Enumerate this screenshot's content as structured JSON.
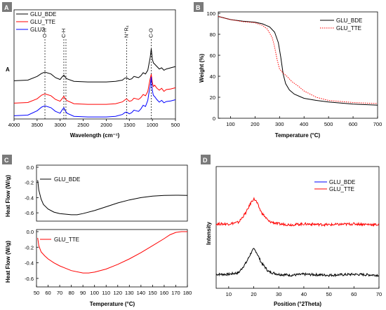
{
  "panels": {
    "a": "A",
    "b": "B",
    "c": "C",
    "d": "D"
  },
  "colors": {
    "black": "#000000",
    "red": "#ff0000",
    "blue": "#0000ff",
    "panel_label_bg": "#7a7a7a"
  },
  "chart_data": [
    {
      "id": "A",
      "type": "line",
      "xlabel": "Wavelength (cm⁻¹)",
      "ylabel": "A",
      "xlim": [
        4000,
        500
      ],
      "xticks": [
        4000,
        3500,
        3000,
        2500,
        2000,
        1500,
        1000,
        500
      ],
      "annotations": [
        {
          "label": "O-H",
          "x": 3330
        },
        {
          "label": "C-H",
          "x": 2920
        },
        {
          "label": "N⁺R₄",
          "x": 1560
        },
        {
          "label": "C-O",
          "x": 1025
        }
      ],
      "x": [
        4000,
        3700,
        3500,
        3400,
        3330,
        3200,
        3100,
        3000,
        2960,
        2920,
        2880,
        2850,
        2700,
        2400,
        2000,
        1800,
        1650,
        1600,
        1560,
        1500,
        1450,
        1400,
        1350,
        1300,
        1250,
        1200,
        1150,
        1100,
        1080,
        1050,
        1025,
        1000,
        980,
        950,
        900,
        850,
        800,
        750,
        700,
        600,
        500
      ],
      "series": [
        {
          "name": "GLU_BDE",
          "color": "#000000",
          "values": [
            0.03,
            0.04,
            0.1,
            0.15,
            0.17,
            0.14,
            0.08,
            0.05,
            0.09,
            0.12,
            0.08,
            0.06,
            0.02,
            0.01,
            0.01,
            0.02,
            0.04,
            0.07,
            0.08,
            0.05,
            0.06,
            0.1,
            0.09,
            0.08,
            0.11,
            0.16,
            0.14,
            0.2,
            0.28,
            0.4,
            0.55,
            0.38,
            0.32,
            0.3,
            0.26,
            0.22,
            0.24,
            0.2,
            0.22,
            0.24,
            0.26
          ]
        },
        {
          "name": "GLU_TTE",
          "color": "#ff0000",
          "values": [
            0.03,
            0.04,
            0.1,
            0.16,
            0.18,
            0.15,
            0.09,
            0.06,
            0.1,
            0.14,
            0.09,
            0.07,
            0.02,
            0.01,
            0.01,
            0.02,
            0.05,
            0.08,
            0.1,
            0.06,
            0.07,
            0.11,
            0.1,
            0.09,
            0.12,
            0.17,
            0.15,
            0.22,
            0.3,
            0.42,
            0.5,
            0.36,
            0.3,
            0.32,
            0.27,
            0.24,
            0.27,
            0.22,
            0.25,
            0.26,
            0.28
          ]
        },
        {
          "name": "GLU2",
          "color": "#0000ff",
          "values": [
            0.03,
            0.04,
            0.11,
            0.17,
            0.19,
            0.16,
            0.1,
            0.07,
            0.12,
            0.16,
            0.1,
            0.07,
            0.02,
            0.01,
            0.01,
            0.02,
            0.05,
            0.08,
            0.09,
            0.06,
            0.08,
            0.12,
            0.11,
            0.1,
            0.14,
            0.2,
            0.18,
            0.28,
            0.38,
            0.5,
            0.66,
            0.44,
            0.36,
            0.34,
            0.29,
            0.25,
            0.28,
            0.24,
            0.26,
            0.27,
            0.29
          ]
        }
      ],
      "legend": "top-left"
    },
    {
      "id": "B",
      "type": "line",
      "xlabel": "Temperature (°C)",
      "ylabel": "Weight (%)",
      "xlim": [
        50,
        700
      ],
      "ylim": [
        0,
        100
      ],
      "xticks": [
        100,
        200,
        300,
        400,
        500,
        600,
        700
      ],
      "yticks": [
        0,
        20,
        40,
        60,
        80,
        100
      ],
      "legend": "top-right",
      "series": [
        {
          "name": "GLU_BDE",
          "color": "#000000",
          "dash": "solid",
          "x": [
            50,
            100,
            150,
            200,
            230,
            260,
            280,
            295,
            305,
            315,
            325,
            340,
            360,
            380,
            400,
            450,
            500,
            550,
            600,
            650,
            700
          ],
          "values": [
            97,
            94,
            92.5,
            91.5,
            90,
            87,
            82,
            72,
            58,
            42,
            33,
            27,
            23,
            21,
            19,
            17,
            15.5,
            14.5,
            13.5,
            13,
            12.5
          ]
        },
        {
          "name": "GLU_TTE",
          "color": "#ff0000",
          "dash": "dotted",
          "x": [
            50,
            100,
            150,
            200,
            230,
            250,
            270,
            280,
            290,
            300,
            315,
            330,
            350,
            380,
            400,
            450,
            500,
            550,
            600,
            650,
            700
          ],
          "values": [
            97,
            94,
            92,
            91,
            88.5,
            85,
            77,
            68,
            56,
            47,
            43,
            40,
            35,
            30,
            26,
            20,
            17,
            16,
            15,
            14.5,
            14
          ]
        }
      ]
    },
    {
      "id": "C-top",
      "type": "line",
      "ylabel": "Heat Flow (W/g)",
      "xlim": [
        50,
        180
      ],
      "ylim": [
        -0.7,
        0.0
      ],
      "yticks": [
        0.0,
        -0.2,
        -0.4,
        -0.6
      ],
      "legend": "top-left",
      "series": [
        {
          "name": "GLU_BDE",
          "color": "#000000",
          "x": [
            51,
            52,
            54,
            56,
            60,
            65,
            70,
            80,
            85,
            90,
            100,
            110,
            120,
            130,
            140,
            150,
            160,
            170,
            180
          ],
          "values": [
            -0.17,
            -0.3,
            -0.42,
            -0.49,
            -0.55,
            -0.59,
            -0.61,
            -0.625,
            -0.625,
            -0.61,
            -0.57,
            -0.52,
            -0.47,
            -0.43,
            -0.4,
            -0.38,
            -0.37,
            -0.368,
            -0.37
          ]
        }
      ]
    },
    {
      "id": "C-bottom",
      "type": "line",
      "ylabel": "Heat Flow (W/g)",
      "xlabel": "Temperature (°C)",
      "xlim": [
        50,
        180
      ],
      "ylim": [
        -0.7,
        0.0
      ],
      "xticks": [
        50,
        60,
        70,
        80,
        90,
        100,
        110,
        120,
        130,
        140,
        150,
        160,
        170,
        180
      ],
      "yticks": [
        0.0,
        -0.2,
        -0.4,
        -0.6
      ],
      "legend": "top-left",
      "series": [
        {
          "name": "GLU_TTE",
          "color": "#ff0000",
          "x": [
            51,
            52,
            54,
            57,
            60,
            65,
            70,
            80,
            90,
            95,
            100,
            110,
            120,
            130,
            140,
            150,
            160,
            165,
            170,
            175,
            180
          ],
          "values": [
            -0.08,
            -0.18,
            -0.26,
            -0.31,
            -0.35,
            -0.4,
            -0.44,
            -0.5,
            -0.53,
            -0.53,
            -0.52,
            -0.48,
            -0.42,
            -0.35,
            -0.27,
            -0.18,
            -0.09,
            -0.04,
            -0.01,
            0.0,
            0.0
          ]
        }
      ]
    },
    {
      "id": "D",
      "type": "line",
      "xlabel": "Position (°2Theta)",
      "ylabel": "Intensity",
      "xlim": [
        5,
        70
      ],
      "xticks": [
        10,
        20,
        30,
        40,
        50,
        60,
        70
      ],
      "legend": "top-right",
      "series": [
        {
          "name": "GLU_BDE",
          "color": "#000000",
          "x": [
            5,
            10,
            14,
            17,
            19,
            20,
            21,
            23,
            26,
            30,
            35,
            40,
            50,
            60,
            70
          ],
          "values": [
            0.1,
            0.1,
            0.12,
            0.24,
            0.36,
            0.4,
            0.37,
            0.24,
            0.13,
            0.1,
            0.09,
            0.1,
            0.09,
            0.1,
            0.09
          ]
        },
        {
          "name": "GLU_TTE",
          "color": "#ff0000",
          "x": [
            5,
            10,
            14,
            17,
            19,
            20,
            21,
            23,
            26,
            30,
            35,
            40,
            50,
            60,
            70
          ],
          "values": [
            0.7,
            0.7,
            0.72,
            0.84,
            0.96,
            1.0,
            0.97,
            0.84,
            0.73,
            0.7,
            0.69,
            0.7,
            0.69,
            0.7,
            0.69
          ]
        }
      ]
    }
  ]
}
